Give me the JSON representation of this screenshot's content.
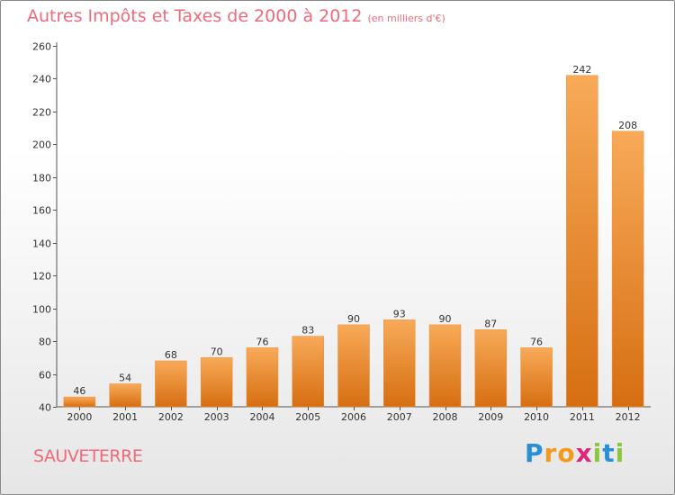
{
  "header": {
    "title": "Autres Impôts et Taxes de 2000 à 2012",
    "unit": "(en milliers d'€)"
  },
  "commune": "SAUVETERRE",
  "logo": {
    "text": "Proxiti"
  },
  "colors": {
    "title": "#ef6a7a",
    "bar_light": "#f8aa58",
    "bar_dark": "#d66e12",
    "axis": "#555555"
  },
  "chart_data": {
    "type": "bar",
    "title": "Autres Impôts et Taxes de 2000 à 2012",
    "subtitle": "(en milliers d'€)",
    "xlabel": "",
    "ylabel": "",
    "categories": [
      "2000",
      "2001",
      "2002",
      "2003",
      "2004",
      "2005",
      "2006",
      "2007",
      "2008",
      "2009",
      "2010",
      "2011",
      "2012"
    ],
    "values": [
      46,
      54,
      68,
      70,
      76,
      83,
      90,
      93,
      90,
      87,
      76,
      242,
      208
    ],
    "data_labels": [
      "46",
      "54",
      "68",
      "70",
      "76",
      "83",
      "90",
      "93",
      "90",
      "87",
      "76",
      "242",
      "208"
    ],
    "ylim": [
      40,
      260
    ],
    "yticks": [
      40,
      60,
      80,
      100,
      120,
      140,
      160,
      180,
      200,
      220,
      240,
      260
    ],
    "grid": false,
    "legend": "none"
  }
}
